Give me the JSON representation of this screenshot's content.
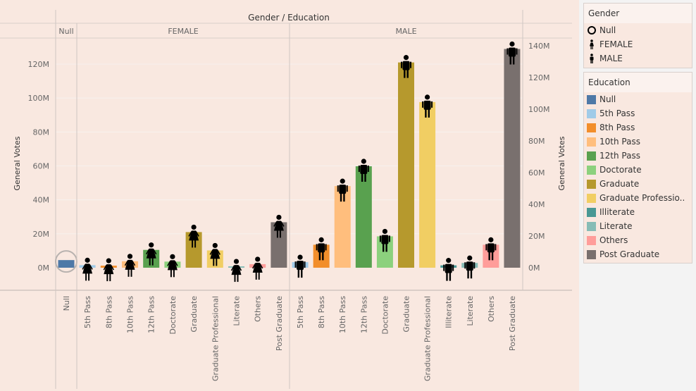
{
  "colors": {
    "Null": "#4e79a7",
    "5th Pass": "#a0cbe8",
    "8th Pass": "#f28e2b",
    "10th Pass": "#ffbe7d",
    "12th Pass": "#59a14f",
    "Doctorate": "#8cd17d",
    "Graduate": "#b6992d",
    "Graduate Professional": "#f1ce63",
    "Illiterate": "#499894",
    "Literate": "#86bcb6",
    "Others": "#ff9d9a",
    "Post Graduate": "#79706e"
  },
  "legend_gender": {
    "title": "Gender",
    "items": [
      {
        "label": "Null",
        "icon": "circle-icon"
      },
      {
        "label": "FEMALE",
        "icon": "female-icon"
      },
      {
        "label": "MALE",
        "icon": "male-icon"
      }
    ]
  },
  "legend_education": {
    "title": "Education",
    "items": [
      {
        "label": "Null",
        "color": "#4e79a7"
      },
      {
        "label": "5th Pass",
        "color": "#a0cbe8"
      },
      {
        "label": "8th Pass",
        "color": "#f28e2b"
      },
      {
        "label": "10th Pass",
        "color": "#ffbe7d"
      },
      {
        "label": "12th Pass",
        "color": "#59a14f"
      },
      {
        "label": "Doctorate",
        "color": "#8cd17d"
      },
      {
        "label": "Graduate",
        "color": "#b6992d"
      },
      {
        "label": "Graduate Professio..",
        "color": "#f1ce63"
      },
      {
        "label": "Illiterate",
        "color": "#499894"
      },
      {
        "label": "Literate",
        "color": "#86bcb6"
      },
      {
        "label": "Others",
        "color": "#ff9d9a"
      },
      {
        "label": "Post Graduate",
        "color": "#79706e"
      }
    ]
  },
  "chart_data": {
    "type": "bar",
    "title": "Gender / Education",
    "ylabel": "General Votes",
    "ylabel_right": "General Votes",
    "ylim_left": [
      0,
      130000000
    ],
    "ylim_right": [
      0,
      140000000
    ],
    "yticks_left": [
      "0M",
      "20M",
      "40M",
      "60M",
      "80M",
      "100M",
      "120M"
    ],
    "yticks_right": [
      "0M",
      "20M",
      "40M",
      "60M",
      "80M",
      "100M",
      "120M",
      "140M"
    ],
    "groups": [
      {
        "name": "Null",
        "categories": [
          "Null"
        ],
        "values": [
          4500000
        ],
        "icon": "circle"
      },
      {
        "name": "FEMALE",
        "categories": [
          "5th Pass",
          "8th Pass",
          "10th Pass",
          "12th Pass",
          "Doctorate",
          "Graduate",
          "Graduate Professional",
          "Literate",
          "Others",
          "Post Graduate"
        ],
        "values": [
          1500000,
          1200000,
          3800000,
          10500000,
          3600000,
          21000000,
          10200000,
          800000,
          2100000,
          26800000
        ],
        "icon": "female"
      },
      {
        "name": "MALE",
        "categories": [
          "5th Pass",
          "8th Pass",
          "10th Pass",
          "12th Pass",
          "Doctorate",
          "Graduate",
          "Graduate Professional",
          "Illiterate",
          "Literate",
          "Others",
          "Post Graduate"
        ],
        "values": [
          3500000,
          14500000,
          51500000,
          64000000,
          19800000,
          129500000,
          104500000,
          1500000,
          3000000,
          14500000,
          138000000
        ],
        "icon": "male"
      }
    ]
  }
}
